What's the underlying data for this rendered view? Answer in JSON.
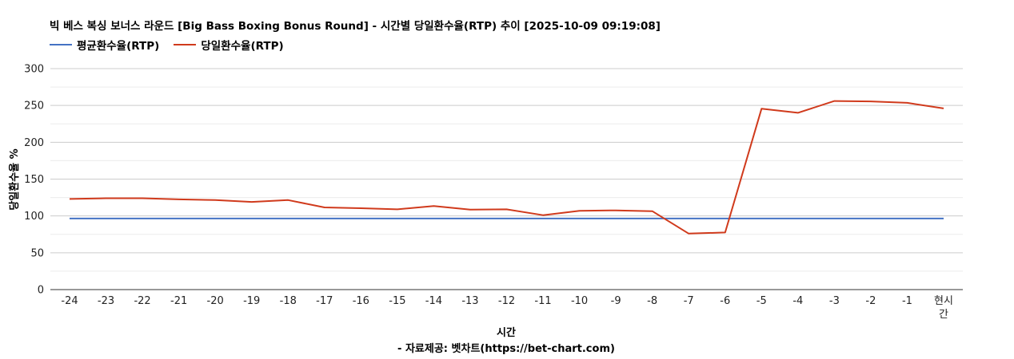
{
  "chart_data": {
    "type": "line",
    "title": "빅 베스 복싱 보너스 라운드 [Big Bass Boxing Bonus Round] - 시간별 당일환수율(RTP) 추이 [2025-10-09 09:19:08]",
    "xlabel": "시간",
    "ylabel": "당일환수율 %",
    "source": "- 자료제공: 벳차트(https://bet-chart.com)",
    "categories": [
      "-24",
      "-23",
      "-22",
      "-21",
      "-20",
      "-19",
      "-18",
      "-17",
      "-16",
      "-15",
      "-14",
      "-13",
      "-12",
      "-11",
      "-10",
      "-9",
      "-8",
      "-7",
      "-6",
      "-5",
      "-4",
      "-3",
      "-2",
      "-1",
      "현시간"
    ],
    "ylim": [
      0,
      300
    ],
    "yticks": [
      0,
      50,
      100,
      150,
      200,
      250,
      300
    ],
    "grid": true,
    "legend_position": "top-left",
    "series": [
      {
        "name": "평균환수율(RTP)",
        "color": "#4472c4",
        "values": [
          96.5,
          96.5,
          96.5,
          96.5,
          96.5,
          96.5,
          96.5,
          96.5,
          96.5,
          96.5,
          96.5,
          96.5,
          96.5,
          96.5,
          96.5,
          96.5,
          96.5,
          96.5,
          96.5,
          96.5,
          96.5,
          96.5,
          96.5,
          96.5,
          96.5
        ]
      },
      {
        "name": "당일환수율(RTP)",
        "color": "#d03a1c",
        "values": [
          123,
          124,
          124,
          122.5,
          121.5,
          119,
          121.5,
          111.5,
          110.5,
          109,
          113.5,
          108.5,
          109,
          101,
          107,
          107.5,
          106.5,
          76,
          77.5,
          245.5,
          240,
          256,
          255.5,
          253.5,
          246
        ]
      }
    ]
  }
}
